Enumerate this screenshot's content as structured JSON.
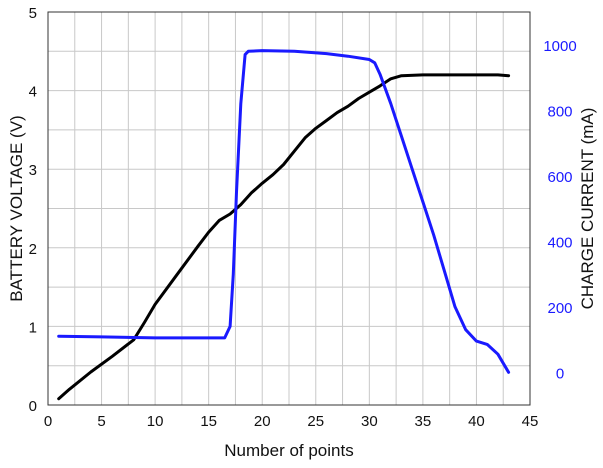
{
  "chart_data": {
    "type": "line",
    "xlabel": "Number of points",
    "ylabel_left": "BATTERY VOLTAGE (V)",
    "ylabel_right": "CHARGE CURRENT (mA)",
    "xlim": [
      0,
      45
    ],
    "ylim_left": [
      0,
      5
    ],
    "ylim_right": [
      -100,
      1100
    ],
    "x_ticks": [
      "0",
      "5",
      "10",
      "15",
      "20",
      "25",
      "30",
      "35",
      "40",
      "45"
    ],
    "y_left_ticks": [
      "0",
      "1",
      "2",
      "3",
      "4",
      "5"
    ],
    "y_right_ticks": [
      "0",
      "200",
      "400",
      "600",
      "800",
      "1000"
    ],
    "grid": true,
    "colors": {
      "voltage": "#000000",
      "current": "#1a1aff",
      "grid": "#c8c8c8",
      "frame": "#333333"
    },
    "series": [
      {
        "axis": "left",
        "color": "#000000",
        "points": [
          [
            1,
            0.08
          ],
          [
            2,
            0.2
          ],
          [
            4,
            0.42
          ],
          [
            6,
            0.62
          ],
          [
            8,
            0.83
          ],
          [
            9,
            1.05
          ],
          [
            10,
            1.28
          ],
          [
            12,
            1.65
          ],
          [
            14,
            2.02
          ],
          [
            15,
            2.2
          ],
          [
            16,
            2.35
          ],
          [
            17,
            2.43
          ],
          [
            18,
            2.55
          ],
          [
            19,
            2.7
          ],
          [
            20,
            2.82
          ],
          [
            21,
            2.93
          ],
          [
            22,
            3.06
          ],
          [
            23,
            3.23
          ],
          [
            24,
            3.4
          ],
          [
            25,
            3.52
          ],
          [
            26,
            3.62
          ],
          [
            27,
            3.72
          ],
          [
            28,
            3.8
          ],
          [
            29,
            3.9
          ],
          [
            30,
            3.98
          ],
          [
            31,
            4.06
          ],
          [
            32,
            4.15
          ],
          [
            33,
            4.19
          ],
          [
            35,
            4.2
          ],
          [
            40,
            4.2
          ],
          [
            42,
            4.2
          ],
          [
            43,
            4.19
          ]
        ]
      },
      {
        "axis": "right",
        "color": "#1a1aff",
        "points": [
          [
            1,
            110
          ],
          [
            5,
            108
          ],
          [
            10,
            105
          ],
          [
            14,
            105
          ],
          [
            16.5,
            105
          ],
          [
            17,
            140
          ],
          [
            17.3,
            300
          ],
          [
            17.6,
            550
          ],
          [
            18,
            820
          ],
          [
            18.4,
            970
          ],
          [
            18.7,
            980
          ],
          [
            20,
            982
          ],
          [
            23,
            980
          ],
          [
            26,
            973
          ],
          [
            28,
            965
          ],
          [
            30,
            955
          ],
          [
            30.5,
            945
          ],
          [
            31,
            910
          ],
          [
            32,
            820
          ],
          [
            33,
            720
          ],
          [
            34,
            620
          ],
          [
            35,
            520
          ],
          [
            36,
            420
          ],
          [
            37,
            310
          ],
          [
            38,
            200
          ],
          [
            39,
            130
          ],
          [
            40,
            95
          ],
          [
            41,
            85
          ],
          [
            42,
            55
          ],
          [
            43,
            0
          ]
        ]
      }
    ]
  }
}
